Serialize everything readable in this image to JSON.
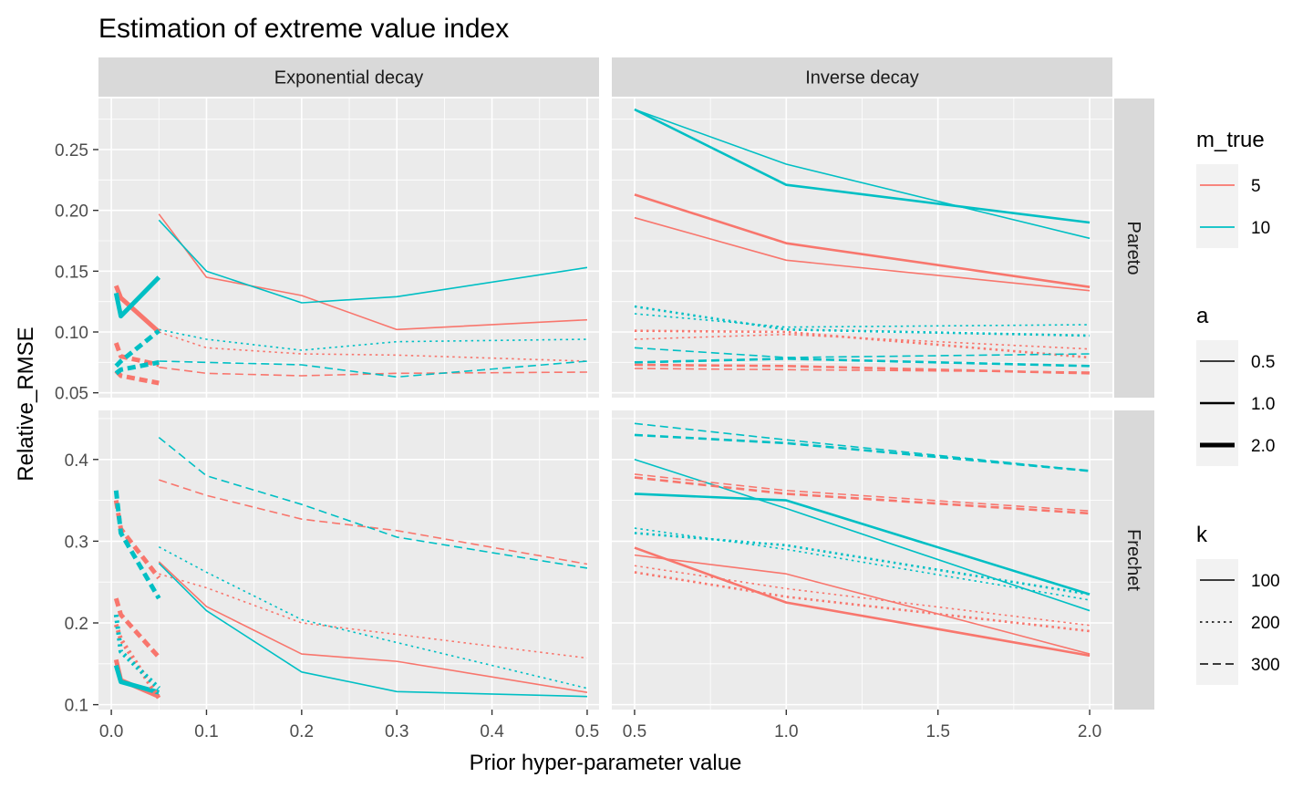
{
  "chart_data": {
    "type": "line",
    "title": "Estimation of extreme value index",
    "xlabel": "Prior hyper-parameter value",
    "ylabel": "Relative_RMSE",
    "grid": true,
    "legend_position": "right",
    "column_facets": [
      "Exponential decay",
      "Inverse decay"
    ],
    "row_facets": [
      "Pareto",
      "Frechet"
    ],
    "column_x_ranges": [
      [
        -0.0135,
        0.5125
      ],
      [
        0.425,
        2.075
      ]
    ],
    "column_x_ticks": [
      {
        "values": [
          0.0,
          0.1,
          0.2,
          0.3,
          0.4,
          0.5
        ],
        "labels": [
          "0.0",
          "0.1",
          "0.2",
          "0.3",
          "0.4",
          "0.5"
        ]
      },
      {
        "values": [
          0.5,
          1.0,
          1.5,
          2.0
        ],
        "labels": [
          "0.5",
          "1.0",
          "1.5",
          "2.0"
        ]
      }
    ],
    "row_y_ranges": [
      [
        0.046,
        0.292
      ],
      [
        0.094,
        0.46
      ]
    ],
    "row_y_ticks": [
      {
        "values": [
          0.05,
          0.1,
          0.15,
          0.2,
          0.25
        ],
        "labels": [
          "0.05",
          "0.10",
          "0.15",
          "0.20",
          "0.25"
        ]
      },
      {
        "values": [
          0.1,
          0.2,
          0.3,
          0.4
        ],
        "labels": [
          "0.1",
          "0.2",
          "0.3",
          "0.4"
        ]
      }
    ],
    "legend": {
      "m_true": {
        "title": "m_true",
        "entries": [
          {
            "label": "5",
            "color": "#F8766D"
          },
          {
            "label": "10",
            "color": "#00BFC4"
          }
        ]
      },
      "a": {
        "title": "a",
        "entries": [
          {
            "label": "0.5",
            "width": 0.5
          },
          {
            "label": "1.0",
            "width": 1.0
          },
          {
            "label": "2.0",
            "width": 2.0
          }
        ]
      },
      "k": {
        "title": "k",
        "entries": [
          {
            "label": "100",
            "dash": "solid"
          },
          {
            "label": "200",
            "dash": "dotted"
          },
          {
            "label": "300",
            "dash": "dashed"
          }
        ]
      }
    },
    "colors": {
      "5": "#F8766D",
      "10": "#00BFC4"
    },
    "series": [
      {
        "facet": [
          0,
          0
        ],
        "m_true": 5,
        "a": 0.5,
        "k": 100,
        "x": [
          0.05,
          0.1,
          0.2,
          0.3,
          0.5
        ],
        "y": [
          0.197,
          0.145,
          0.13,
          0.102,
          0.11
        ]
      },
      {
        "facet": [
          0,
          0
        ],
        "m_true": 10,
        "a": 0.5,
        "k": 100,
        "x": [
          0.05,
          0.1,
          0.2,
          0.3,
          0.5
        ],
        "y": [
          0.192,
          0.15,
          0.124,
          0.129,
          0.153
        ]
      },
      {
        "facet": [
          0,
          0
        ],
        "m_true": 5,
        "a": 0.5,
        "k": 200,
        "x": [
          0.05,
          0.1,
          0.2,
          0.3,
          0.5
        ],
        "y": [
          0.1,
          0.087,
          0.082,
          0.081,
          0.076
        ]
      },
      {
        "facet": [
          0,
          0
        ],
        "m_true": 10,
        "a": 0.5,
        "k": 200,
        "x": [
          0.05,
          0.1,
          0.2,
          0.3,
          0.5
        ],
        "y": [
          0.102,
          0.094,
          0.085,
          0.092,
          0.094
        ]
      },
      {
        "facet": [
          0,
          0
        ],
        "m_true": 5,
        "a": 0.5,
        "k": 300,
        "x": [
          0.05,
          0.1,
          0.2,
          0.3,
          0.5
        ],
        "y": [
          0.071,
          0.066,
          0.064,
          0.066,
          0.067
        ]
      },
      {
        "facet": [
          0,
          0
        ],
        "m_true": 10,
        "a": 0.5,
        "k": 300,
        "x": [
          0.05,
          0.1,
          0.2,
          0.3,
          0.5
        ],
        "y": [
          0.076,
          0.075,
          0.073,
          0.063,
          0.076
        ]
      },
      {
        "facet": [
          0,
          0
        ],
        "m_true": 5,
        "a": 2.0,
        "k": 100,
        "x": [
          0.005,
          0.01,
          0.05
        ],
        "y": [
          0.138,
          0.128,
          0.1
        ]
      },
      {
        "facet": [
          0,
          0
        ],
        "m_true": 10,
        "a": 2.0,
        "k": 100,
        "x": [
          0.005,
          0.01,
          0.05
        ],
        "y": [
          0.132,
          0.113,
          0.145
        ]
      },
      {
        "facet": [
          0,
          0
        ],
        "m_true": 5,
        "a": 2.0,
        "k": 300,
        "x": [
          0.005,
          0.01,
          0.05
        ],
        "y": [
          0.091,
          0.08,
          0.073
        ]
      },
      {
        "facet": [
          0,
          0
        ],
        "m_true": 10,
        "a": 2.0,
        "k": 300,
        "x": [
          0.005,
          0.01,
          0.05
        ],
        "y": [
          0.072,
          0.076,
          0.101
        ]
      },
      {
        "facet": [
          0,
          0
        ],
        "m_true": 5,
        "a": 2.0,
        "k": 300,
        "x": [
          0.005,
          0.01,
          0.05
        ],
        "y": [
          0.068,
          0.064,
          0.058
        ]
      },
      {
        "facet": [
          0,
          0
        ],
        "m_true": 10,
        "a": 2.0,
        "k": 300,
        "x": [
          0.005,
          0.01,
          0.05
        ],
        "y": [
          0.066,
          0.069,
          0.075
        ]
      },
      {
        "facet": [
          0,
          1
        ],
        "m_true": 5,
        "a": 0.5,
        "k": 100,
        "x": [
          0.5,
          1.0,
          2.0
        ],
        "y": [
          0.194,
          0.159,
          0.134
        ]
      },
      {
        "facet": [
          0,
          1
        ],
        "m_true": 5,
        "a": 1.0,
        "k": 100,
        "x": [
          0.5,
          1.0,
          2.0
        ],
        "y": [
          0.213,
          0.173,
          0.137
        ]
      },
      {
        "facet": [
          0,
          1
        ],
        "m_true": 10,
        "a": 0.5,
        "k": 100,
        "x": [
          0.5,
          1.0,
          2.0
        ],
        "y": [
          0.283,
          0.238,
          0.177
        ]
      },
      {
        "facet": [
          0,
          1
        ],
        "m_true": 10,
        "a": 1.0,
        "k": 100,
        "x": [
          0.5,
          1.0,
          2.0
        ],
        "y": [
          0.283,
          0.221,
          0.19
        ]
      },
      {
        "facet": [
          0,
          1
        ],
        "m_true": 10,
        "a": 0.5,
        "k": 200,
        "x": [
          0.5,
          1.0,
          2.0
        ],
        "y": [
          0.115,
          0.104,
          0.106
        ]
      },
      {
        "facet": [
          0,
          1
        ],
        "m_true": 10,
        "a": 1.0,
        "k": 200,
        "x": [
          0.5,
          1.0,
          2.0
        ],
        "y": [
          0.121,
          0.102,
          0.097
        ]
      },
      {
        "facet": [
          0,
          1
        ],
        "m_true": 5,
        "a": 0.5,
        "k": 200,
        "x": [
          0.5,
          1.0,
          2.0
        ],
        "y": [
          0.094,
          0.098,
          0.086
        ]
      },
      {
        "facet": [
          0,
          1
        ],
        "m_true": 5,
        "a": 1.0,
        "k": 200,
        "x": [
          0.5,
          1.0,
          2.0
        ],
        "y": [
          0.101,
          0.1,
          0.079
        ]
      },
      {
        "facet": [
          0,
          1
        ],
        "m_true": 10,
        "a": 0.5,
        "k": 300,
        "x": [
          0.5,
          1.0,
          2.0
        ],
        "y": [
          0.087,
          0.079,
          0.082
        ]
      },
      {
        "facet": [
          0,
          1
        ],
        "m_true": 10,
        "a": 1.0,
        "k": 300,
        "x": [
          0.5,
          1.0,
          2.0
        ],
        "y": [
          0.075,
          0.078,
          0.072
        ]
      },
      {
        "facet": [
          0,
          1
        ],
        "m_true": 5,
        "a": 0.5,
        "k": 300,
        "x": [
          0.5,
          1.0,
          2.0
        ],
        "y": [
          0.07,
          0.069,
          0.067
        ]
      },
      {
        "facet": [
          0,
          1
        ],
        "m_true": 5,
        "a": 1.0,
        "k": 300,
        "x": [
          0.5,
          1.0,
          2.0
        ],
        "y": [
          0.073,
          0.072,
          0.066
        ]
      },
      {
        "facet": [
          1,
          0
        ],
        "m_true": 5,
        "a": 0.5,
        "k": 100,
        "x": [
          0.05,
          0.1,
          0.2,
          0.3,
          0.5
        ],
        "y": [
          0.275,
          0.22,
          0.162,
          0.153,
          0.115
        ]
      },
      {
        "facet": [
          1,
          0
        ],
        "m_true": 10,
        "a": 0.5,
        "k": 100,
        "x": [
          0.05,
          0.1,
          0.2,
          0.3,
          0.5
        ],
        "y": [
          0.273,
          0.215,
          0.14,
          0.116,
          0.11
        ]
      },
      {
        "facet": [
          1,
          0
        ],
        "m_true": 5,
        "a": 0.5,
        "k": 200,
        "x": [
          0.05,
          0.1,
          0.2,
          0.3,
          0.5
        ],
        "y": [
          0.26,
          0.243,
          0.2,
          0.186,
          0.157
        ]
      },
      {
        "facet": [
          1,
          0
        ],
        "m_true": 10,
        "a": 0.5,
        "k": 200,
        "x": [
          0.05,
          0.1,
          0.2,
          0.3,
          0.5
        ],
        "y": [
          0.293,
          0.262,
          0.204,
          0.176,
          0.12
        ]
      },
      {
        "facet": [
          1,
          0
        ],
        "m_true": 5,
        "a": 0.5,
        "k": 300,
        "x": [
          0.05,
          0.1,
          0.2,
          0.3,
          0.5
        ],
        "y": [
          0.375,
          0.356,
          0.327,
          0.313,
          0.272
        ]
      },
      {
        "facet": [
          1,
          0
        ],
        "m_true": 10,
        "a": 0.5,
        "k": 300,
        "x": [
          0.05,
          0.1,
          0.2,
          0.3,
          0.5
        ],
        "y": [
          0.427,
          0.38,
          0.345,
          0.305,
          0.267
        ]
      },
      {
        "facet": [
          1,
          0
        ],
        "m_true": 5,
        "a": 2.0,
        "k": 100,
        "x": [
          0.005,
          0.01,
          0.05
        ],
        "y": [
          0.155,
          0.13,
          0.11
        ]
      },
      {
        "facet": [
          1,
          0
        ],
        "m_true": 10,
        "a": 2.0,
        "k": 100,
        "x": [
          0.005,
          0.01,
          0.05
        ],
        "y": [
          0.148,
          0.128,
          0.115
        ]
      },
      {
        "facet": [
          1,
          0
        ],
        "m_true": 5,
        "a": 2.0,
        "k": 200,
        "x": [
          0.005,
          0.01,
          0.05
        ],
        "y": [
          0.198,
          0.18,
          0.108
        ]
      },
      {
        "facet": [
          1,
          0
        ],
        "m_true": 10,
        "a": 2.0,
        "k": 200,
        "x": [
          0.005,
          0.01,
          0.05
        ],
        "y": [
          0.21,
          0.165,
          0.12
        ]
      },
      {
        "facet": [
          1,
          0
        ],
        "m_true": 5,
        "a": 2.0,
        "k": 300,
        "x": [
          0.005,
          0.01,
          0.05
        ],
        "y": [
          0.23,
          0.21,
          0.158
        ]
      },
      {
        "facet": [
          1,
          0
        ],
        "m_true": 5,
        "a": 2.0,
        "k": 300,
        "x": [
          0.005,
          0.01,
          0.05
        ],
        "y": [
          0.35,
          0.315,
          0.255
        ]
      },
      {
        "facet": [
          1,
          0
        ],
        "m_true": 10,
        "a": 2.0,
        "k": 300,
        "x": [
          0.005,
          0.01,
          0.05
        ],
        "y": [
          0.362,
          0.31,
          0.23
        ]
      },
      {
        "facet": [
          1,
          1
        ],
        "m_true": 10,
        "a": 0.5,
        "k": 100,
        "x": [
          0.5,
          1.0,
          2.0
        ],
        "y": [
          0.4,
          0.34,
          0.215
        ]
      },
      {
        "facet": [
          1,
          1
        ],
        "m_true": 10,
        "a": 1.0,
        "k": 100,
        "x": [
          0.5,
          1.0,
          2.0
        ],
        "y": [
          0.358,
          0.35,
          0.235
        ]
      },
      {
        "facet": [
          1,
          1
        ],
        "m_true": 5,
        "a": 0.5,
        "k": 100,
        "x": [
          0.5,
          1.0,
          2.0
        ],
        "y": [
          0.283,
          0.26,
          0.162
        ]
      },
      {
        "facet": [
          1,
          1
        ],
        "m_true": 5,
        "a": 1.0,
        "k": 100,
        "x": [
          0.5,
          1.0,
          2.0
        ],
        "y": [
          0.292,
          0.225,
          0.16
        ]
      },
      {
        "facet": [
          1,
          1
        ],
        "m_true": 10,
        "a": 0.5,
        "k": 200,
        "x": [
          0.5,
          1.0,
          2.0
        ],
        "y": [
          0.316,
          0.29,
          0.228
        ]
      },
      {
        "facet": [
          1,
          1
        ],
        "m_true": 10,
        "a": 1.0,
        "k": 200,
        "x": [
          0.5,
          1.0,
          2.0
        ],
        "y": [
          0.31,
          0.295,
          0.235
        ]
      },
      {
        "facet": [
          1,
          1
        ],
        "m_true": 5,
        "a": 0.5,
        "k": 200,
        "x": [
          0.5,
          1.0,
          2.0
        ],
        "y": [
          0.27,
          0.242,
          0.197
        ]
      },
      {
        "facet": [
          1,
          1
        ],
        "m_true": 5,
        "a": 1.0,
        "k": 200,
        "x": [
          0.5,
          1.0,
          2.0
        ],
        "y": [
          0.262,
          0.232,
          0.19
        ]
      },
      {
        "facet": [
          1,
          1
        ],
        "m_true": 10,
        "a": 0.5,
        "k": 300,
        "x": [
          0.5,
          1.0,
          2.0
        ],
        "y": [
          0.444,
          0.424,
          0.386
        ]
      },
      {
        "facet": [
          1,
          1
        ],
        "m_true": 10,
        "a": 1.0,
        "k": 300,
        "x": [
          0.5,
          1.0,
          2.0
        ],
        "y": [
          0.43,
          0.42,
          0.386
        ]
      },
      {
        "facet": [
          1,
          1
        ],
        "m_true": 5,
        "a": 0.5,
        "k": 300,
        "x": [
          0.5,
          1.0,
          2.0
        ],
        "y": [
          0.382,
          0.362,
          0.337
        ]
      },
      {
        "facet": [
          1,
          1
        ],
        "m_true": 5,
        "a": 1.0,
        "k": 300,
        "x": [
          0.5,
          1.0,
          2.0
        ],
        "y": [
          0.378,
          0.358,
          0.334
        ]
      }
    ]
  }
}
